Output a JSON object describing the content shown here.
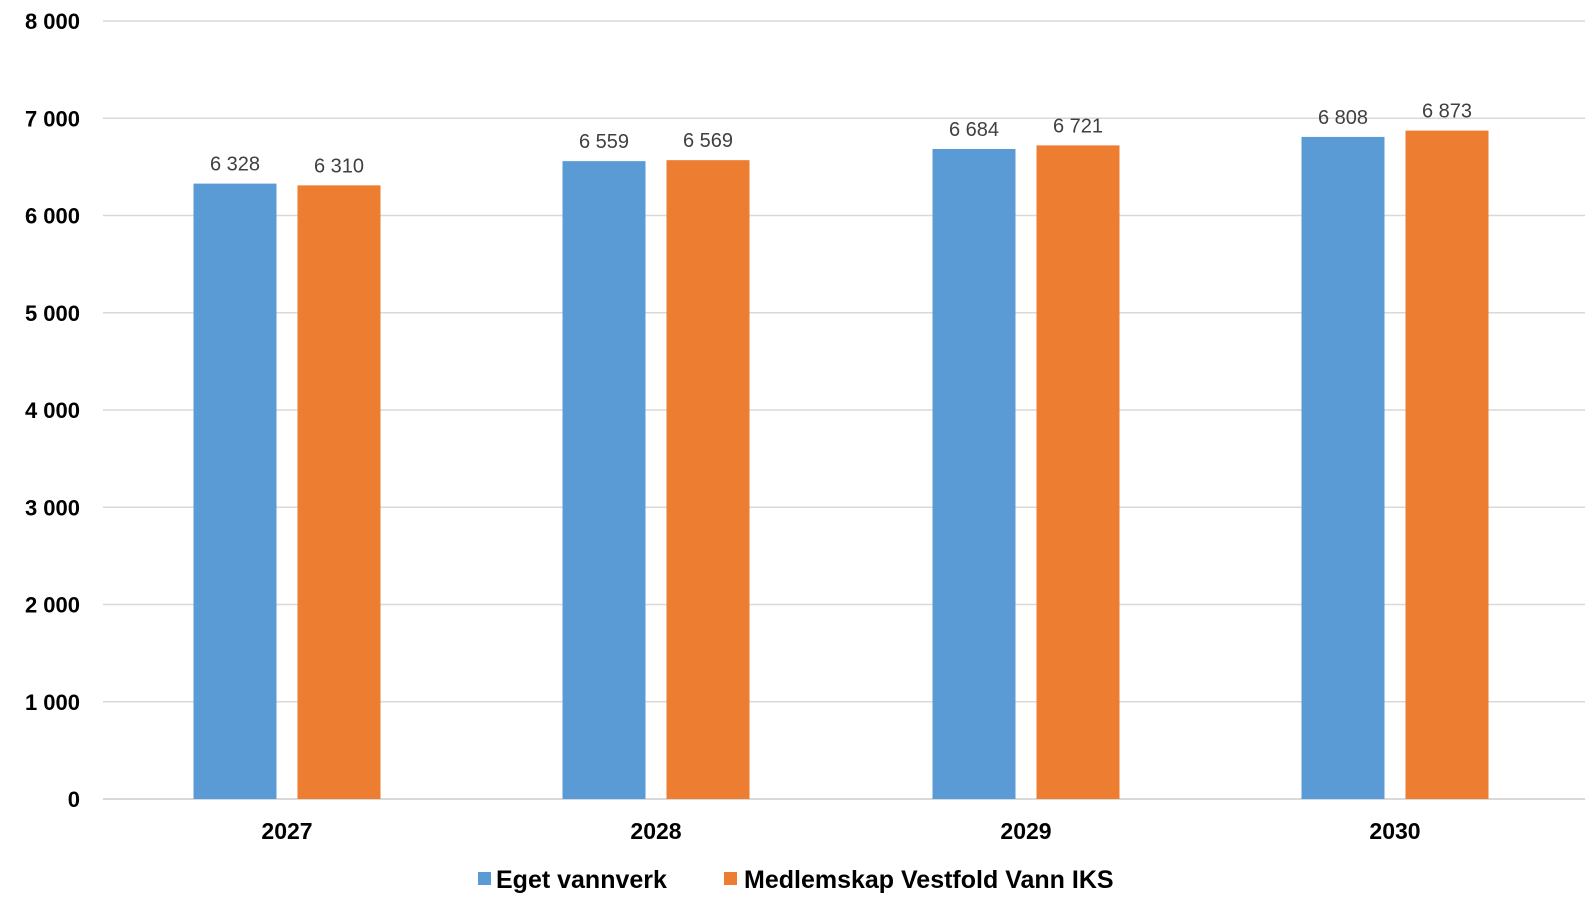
{
  "chart_data": {
    "type": "bar",
    "title": "",
    "xlabel": "",
    "ylabel": "",
    "categories": [
      "2027",
      "2028",
      "2029",
      "2030"
    ],
    "series": [
      {
        "name": "Eget vannverk",
        "color": "#5b9bd5",
        "values": [
          6328,
          6559,
          6684,
          6808
        ],
        "labels": [
          "6 328",
          "6 559",
          "6 684",
          "6 808"
        ]
      },
      {
        "name": "Medlemskap Vestfold Vann IKS",
        "color": "#ed7d31",
        "values": [
          6310,
          6569,
          6721,
          6873
        ],
        "labels": [
          "6 310",
          "6 569",
          "6 721",
          "6 873"
        ]
      }
    ],
    "ylim": [
      0,
      8000
    ],
    "yticks": [
      0,
      1000,
      2000,
      3000,
      4000,
      5000,
      6000,
      7000,
      8000
    ],
    "ytick_labels": [
      "0",
      "1 000",
      "2 000",
      "3 000",
      "4 000",
      "5 000",
      "6 000",
      "7 000",
      "8 000"
    ],
    "grid": true,
    "legend_position": "bottom",
    "data_labels": true
  }
}
